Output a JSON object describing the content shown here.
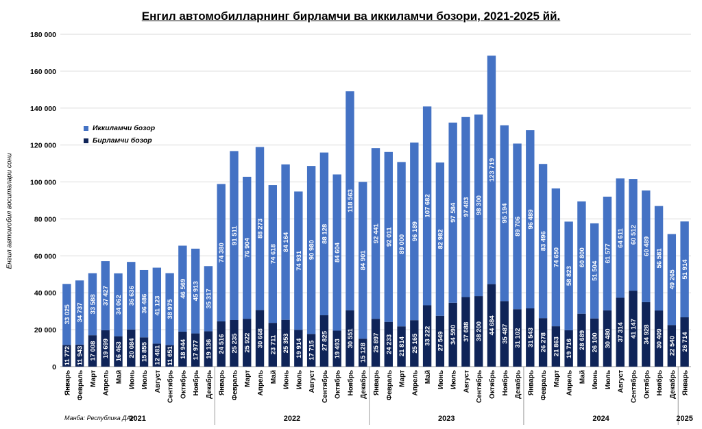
{
  "chart_data": {
    "type": "bar",
    "stacked": true,
    "title": "Енгил автомобилларнинг бирламчи ва иккиламчи бозори, 2021-2025 йй.",
    "ylabel": "Енгил автомобил воситалари сони",
    "ylim": [
      0,
      180000
    ],
    "yticks": [
      "0",
      "20 000",
      "40 000",
      "60 000",
      "80 000",
      "100 000",
      "120 000",
      "140 000",
      "160 000",
      "180 000"
    ],
    "grid": true,
    "legend_position": "left",
    "colors": {
      "primary": "#0f2458",
      "secondary": "#4472c4"
    },
    "categories": [
      "Январь",
      "Февраль",
      "Март",
      "Апрель",
      "Май",
      "Июнь",
      "Июль",
      "Август",
      "Сентябрь",
      "Октябрь",
      "Ноябрь",
      "Декабрь",
      "Январь",
      "Февраль",
      "Март",
      "Апрель",
      "Май",
      "Июнь",
      "Июль",
      "Август",
      "Сентябрь",
      "Октябрь",
      "Ноябрь",
      "Декабрь",
      "Январь",
      "Февраль",
      "Март",
      "Апрель",
      "Май",
      "Июнь",
      "Июль",
      "Август",
      "Сентябрь",
      "Октябрь",
      "Ноябрь",
      "Декабрь",
      "Январь",
      "Февраль",
      "Март",
      "Апрель",
      "Май",
      "Июнь",
      "Июль",
      "Август",
      "Сентябрь",
      "Октябрь",
      "Ноябрь",
      "Декабрь",
      "Январь"
    ],
    "years": [
      {
        "label": "2021",
        "count": 12
      },
      {
        "label": "2022",
        "count": 12
      },
      {
        "label": "2023",
        "count": 12
      },
      {
        "label": "2024",
        "count": 12
      },
      {
        "label": "2025",
        "count": 1
      }
    ],
    "series": [
      {
        "name": "Бирламчи бозор",
        "values": [
          11772,
          11943,
          17008,
          19699,
          16463,
          20084,
          15855,
          12481,
          11651,
          18944,
          17977,
          19136,
          24516,
          25235,
          25922,
          30668,
          23711,
          25353,
          19914,
          17715,
          27825,
          19493,
          30551,
          15128,
          25897,
          24233,
          21814,
          25165,
          33222,
          27549,
          34590,
          37688,
          38200,
          44684,
          35487,
          31102,
          31543,
          26278,
          21863,
          19716,
          28689,
          26100,
          30480,
          37314,
          41147,
          34928,
          30409,
          22540,
          26714
        ]
      },
      {
        "name": "Иккиламчи бозор",
        "values": [
          33025,
          34737,
          33588,
          37427,
          34062,
          36636,
          36486,
          41123,
          38975,
          46569,
          45913,
          35317,
          74380,
          91511,
          76904,
          88273,
          74618,
          84164,
          74931,
          90980,
          88128,
          84604,
          118563,
          84901,
          92441,
          92011,
          89000,
          96189,
          107682,
          82982,
          97584,
          97483,
          98300,
          123719,
          95194,
          89706,
          96489,
          83496,
          74650,
          58823,
          60800,
          51504,
          61577,
          64611,
          60512,
          60489,
          56581,
          49265,
          51914
        ]
      }
    ]
  },
  "source_note": "Манба: Республика ДАИ"
}
